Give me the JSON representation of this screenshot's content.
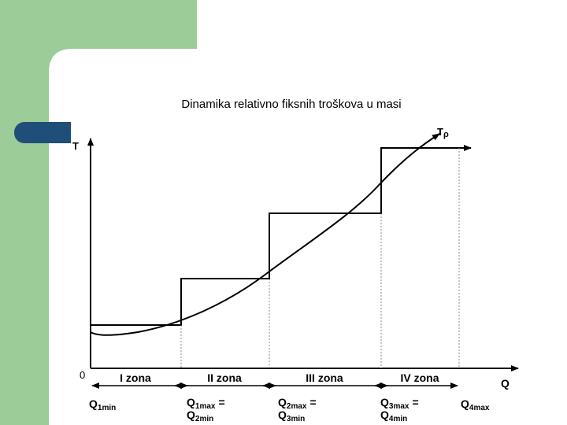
{
  "title": "Dinamika relativno fiksnih troškova u masi",
  "axes": {
    "y_label": "T",
    "x_label": "Q",
    "origin": "0",
    "curve_label": {
      "main": "T",
      "sub": "ρ"
    }
  },
  "zones": [
    "I zona",
    "II zona",
    "III zona",
    "IV zona"
  ],
  "q_labels": [
    {
      "main": "Q",
      "sub": "1min"
    },
    {
      "main": "Q",
      "sub": "1max",
      "suffix": "=",
      "main2": "Q",
      "sub2": "2min"
    },
    {
      "main": "Q",
      "sub": "2max",
      "suffix": "=",
      "main2": "Q",
      "sub2": "3min"
    },
    {
      "main": "Q",
      "sub": "3max",
      "suffix": "=",
      "main2": "Q",
      "sub2": "4min"
    },
    {
      "main": "Q",
      "sub": "4max"
    }
  ]
}
